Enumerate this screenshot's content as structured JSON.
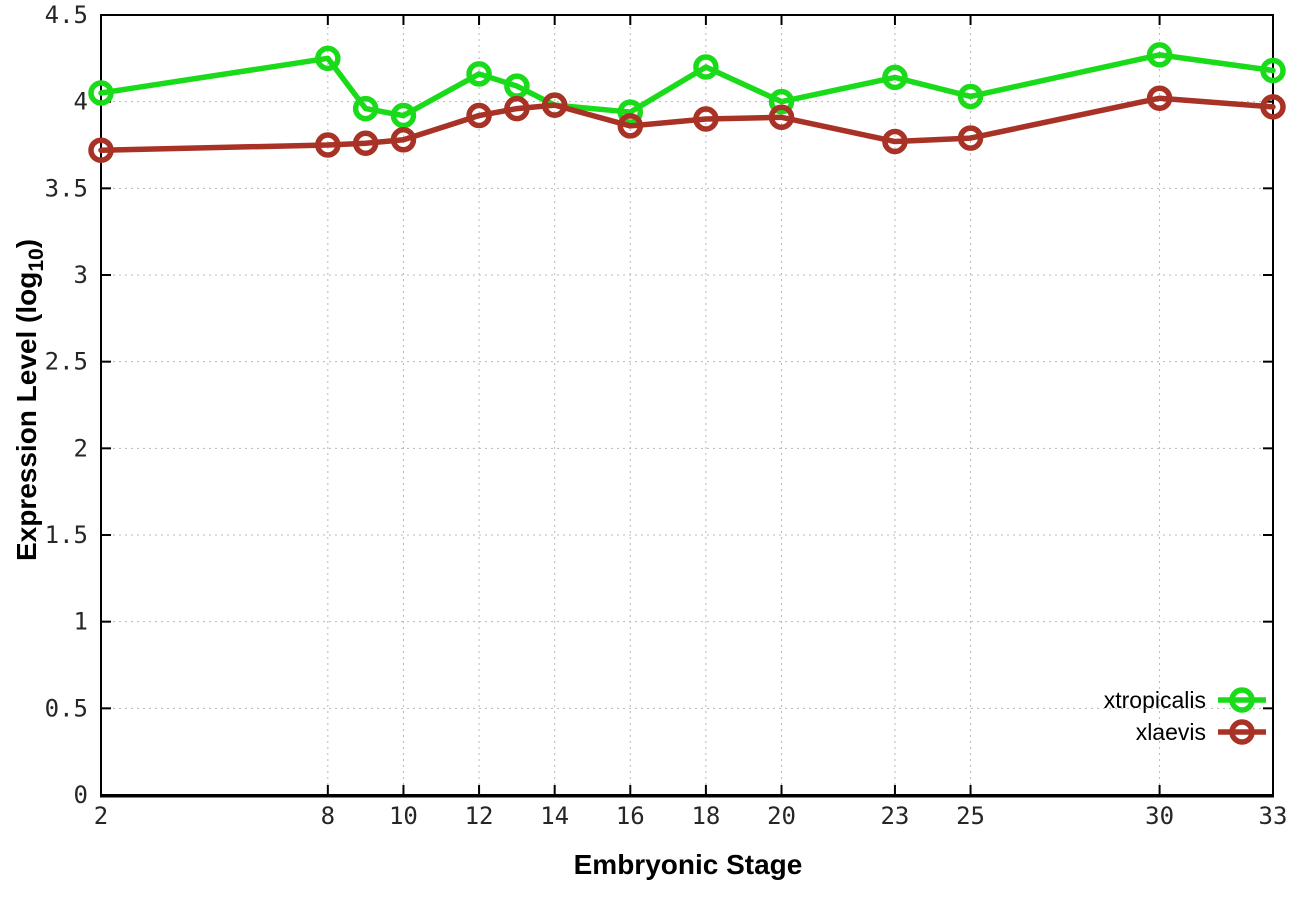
{
  "chart_data": {
    "type": "line",
    "title": "",
    "xlabel": "Embryonic Stage",
    "ylabel": "Expression Level (log10)",
    "ylabel_parts": {
      "main": "Expression Level (log",
      "sub": "10",
      "end": ")"
    },
    "x": [
      2,
      8,
      9,
      10,
      12,
      13,
      14,
      16,
      18,
      20,
      23,
      25,
      30,
      33
    ],
    "xticks": [
      2,
      8,
      10,
      12,
      14,
      16,
      18,
      20,
      23,
      25,
      30,
      33
    ],
    "yticks": [
      0,
      0.5,
      1,
      1.5,
      2,
      2.5,
      3,
      3.5,
      4,
      4.5
    ],
    "xlim": [
      2,
      33
    ],
    "ylim": [
      0,
      4.5
    ],
    "grid": true,
    "legend_position": "inside-bottom-right",
    "marker": "open-circle",
    "series": [
      {
        "name": "xtropicalis",
        "color": "#1ADB1A",
        "values": [
          4.05,
          4.25,
          3.96,
          3.92,
          4.16,
          4.09,
          3.98,
          3.94,
          4.2,
          4.0,
          4.14,
          4.03,
          4.27,
          4.18
        ]
      },
      {
        "name": "xlaevis",
        "color": "#A93226",
        "values": [
          3.72,
          3.75,
          3.76,
          3.78,
          3.92,
          3.96,
          3.98,
          3.86,
          3.9,
          3.91,
          3.77,
          3.79,
          4.02,
          3.97
        ]
      }
    ]
  },
  "colors": {
    "background": "#ffffff",
    "border": "#000000",
    "grid": "#b8b8b8",
    "tick_text": "#262626"
  }
}
